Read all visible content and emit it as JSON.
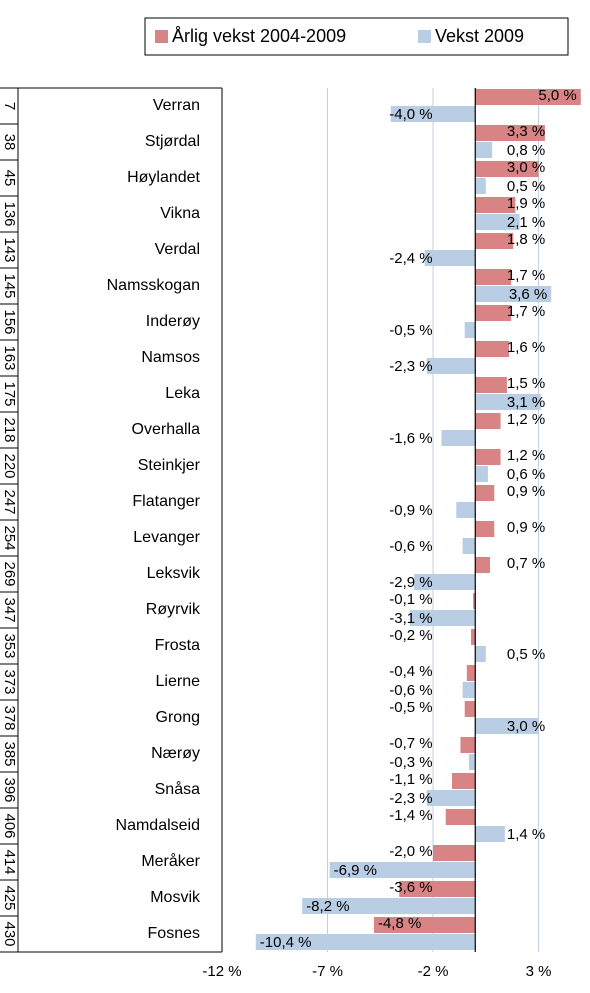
{
  "chart_data": {
    "type": "bar",
    "orientation": "horizontal",
    "categories": [
      "Verran",
      "Stjørdal",
      "Høylandet",
      "Vikna",
      "Verdal",
      "Namsskogan",
      "Inderøy",
      "Namsos",
      "Leka",
      "Overhalla",
      "Steinkjer",
      "Flatanger",
      "Levanger",
      "Leksvik",
      "Røyrvik",
      "Frosta",
      "Lierne",
      "Grong",
      "Nærøy",
      "Snåsa",
      "Namdalseid",
      "Meråker",
      "Mosvik",
      "Fosnes"
    ],
    "category_ranks": [
      7,
      38,
      45,
      136,
      143,
      145,
      156,
      163,
      175,
      218,
      220,
      247,
      254,
      269,
      347,
      353,
      373,
      378,
      385,
      396,
      406,
      414,
      425,
      430
    ],
    "series": [
      {
        "name": "Årlig vekst 2004-2009",
        "color": "#d88384",
        "values": [
          5.0,
          3.3,
          3.0,
          1.9,
          1.8,
          1.7,
          1.7,
          1.6,
          1.5,
          1.2,
          1.2,
          0.9,
          0.9,
          0.7,
          -0.1,
          -0.2,
          -0.4,
          -0.5,
          -0.7,
          -1.1,
          -1.4,
          -2.0,
          -3.6,
          -4.8
        ],
        "value_labels": [
          "5,0 %",
          "3,3 %",
          "3,0 %",
          "1,9 %",
          "1,8 %",
          "1,7 %",
          "1,7 %",
          "1,6 %",
          "1,5 %",
          "1,2 %",
          "1,2 %",
          "0,9 %",
          "0,9 %",
          "0,7 %",
          "-0,1 %",
          "-0,2 %",
          "-0,4 %",
          "-0,5 %",
          "-0,7 %",
          "-1,1 %",
          "-1,4 %",
          "-2,0 %",
          "-3,6 %",
          "-4,8 %"
        ]
      },
      {
        "name": "Vekst 2009",
        "color": "#b9cde5",
        "values": [
          -4.0,
          0.8,
          0.5,
          2.1,
          -2.4,
          3.6,
          -0.5,
          -2.3,
          3.1,
          -1.6,
          0.6,
          -0.9,
          -0.6,
          -2.9,
          -3.1,
          0.5,
          -0.6,
          3.0,
          -0.3,
          -2.3,
          1.4,
          -6.9,
          -8.2,
          -10.4
        ],
        "value_labels": [
          "-4,0 %",
          "0,8 %",
          "0,5 %",
          "2,1 %",
          "-2,4 %",
          "3,6 %",
          "-0,5 %",
          "-2,3 %",
          "3,1 %",
          "-1,6 %",
          "0,6 %",
          "-0,9 %",
          "-0,6 %",
          "-2,9 %",
          "-3,1 %",
          "0,5 %",
          "-0,6 %",
          "3,0 %",
          "-0,3 %",
          "-2,3 %",
          "1,4 %",
          "-6,9 %",
          "-8,2 %",
          "-10,4 %"
        ]
      }
    ],
    "xlim": [
      -12,
      5.2
    ],
    "xticks": [
      {
        "value": -12,
        "label": "-12 %"
      },
      {
        "value": -7,
        "label": "-7 %"
      },
      {
        "value": -2,
        "label": "-2 %"
      },
      {
        "value": 3,
        "label": "3 %"
      }
    ],
    "grid": true,
    "legend": "top"
  }
}
